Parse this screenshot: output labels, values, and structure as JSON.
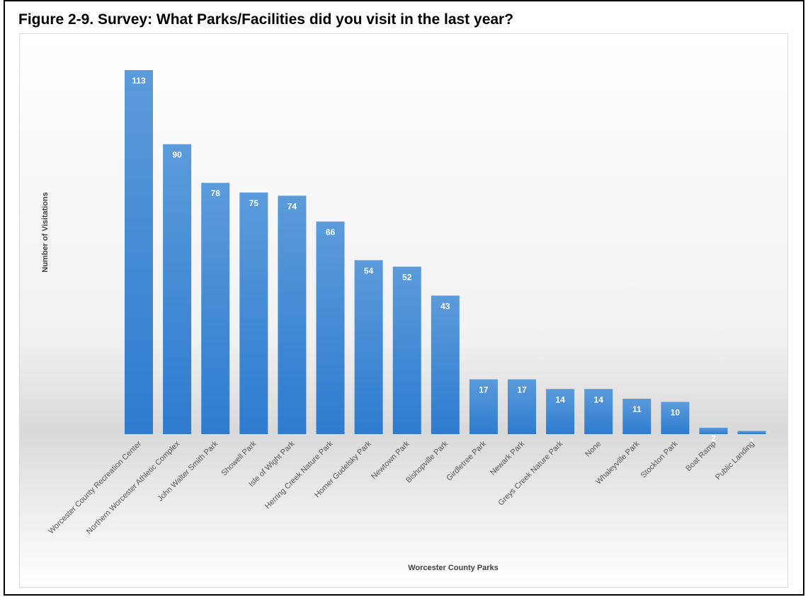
{
  "figure_title": "Figure 2-9.  Survey:  What Parks/Facilities did you visit in the last year?",
  "chart_data": {
    "type": "bar",
    "title": "",
    "xlabel": "Worcester County Parks",
    "ylabel": "Number of Visitations",
    "categories": [
      "Worcester County Recreation Center",
      "Northern Worcester Athletic Complex",
      "John Walter Smith Park",
      "Showell Park",
      "Isle of Wight Park",
      "Herring Creek Nature Park",
      "Homer Gudelsky Park",
      "Newtown Park",
      "Bishopville Park",
      "Girdletree Park",
      "Newark Park",
      "Greys Creek Nature Park",
      "None",
      "Whaleyville Park",
      "Stockton Park",
      "Boat Ramp",
      "Public Landing"
    ],
    "values": [
      113,
      90,
      78,
      75,
      74,
      66,
      54,
      52,
      43,
      17,
      17,
      14,
      14,
      11,
      10,
      2,
      1
    ],
    "ylim": [
      0,
      113
    ],
    "grid": false,
    "data_labels": true,
    "bar_color": "#4a90d9",
    "bar_color_dark": "#2e7bcf"
  }
}
